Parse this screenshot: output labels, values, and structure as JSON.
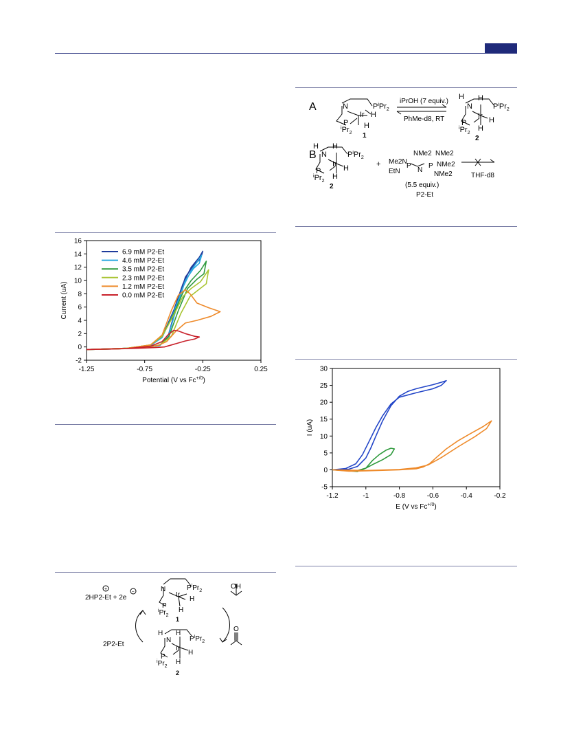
{
  "header": {
    "accent_color": "#1f2a7a"
  },
  "scheme_top": {
    "panel_a_label": "A",
    "panel_b_label": "B",
    "reagent_top": "iPrOH (7 equiv.)",
    "reagent_bottom": "PhMe-d8, RT",
    "compound_1": "1",
    "compound_2": "2",
    "compound_2b": "2",
    "plus": "+",
    "base_amount": "(5.5 equiv.)",
    "base_name": "P2-Et",
    "solvent_b": "THF-d8",
    "base_groups": [
      "Me2N",
      "NMe2",
      "NMe2",
      "EtN",
      "P",
      "N",
      "P",
      "NMe2",
      "NMe2"
    ]
  },
  "scheme_bottom": {
    "products_left": "2HP2-Et + 2e",
    "base_left": "2P2-Et",
    "alcohol": "OH",
    "ketone": "O",
    "compound_1": "1",
    "compound_2": "2"
  },
  "chart_data": [
    {
      "type": "line",
      "xlabel": "Potential  (V vs Fc+/0)",
      "ylabel": "Current (uA)",
      "xlim": [
        -1.25,
        0.25
      ],
      "ylim": [
        -2,
        16
      ],
      "xticks": [
        "-1.25",
        "-0.75",
        "-0.25",
        "0.25"
      ],
      "yticks": [
        "-2",
        "0",
        "2",
        "4",
        "6",
        "8",
        "10",
        "12",
        "14",
        "16"
      ],
      "legend": "top-left",
      "series": [
        {
          "name": "6.9 mM P2-Et",
          "color": "#1f3c9c",
          "x": [
            -1.25,
            -0.9,
            -0.7,
            -0.6,
            -0.5,
            -0.42,
            -0.35,
            -0.28,
            -0.25,
            -0.27,
            -0.32,
            -0.4,
            -0.48,
            -0.55,
            -0.62,
            -0.75,
            -1.0,
            -1.25
          ],
          "y": [
            -0.4,
            -0.2,
            0.2,
            1.5,
            5.5,
            9.5,
            12.0,
            13.5,
            14.4,
            13.2,
            12.5,
            10.5,
            6.0,
            1.5,
            0.2,
            -0.1,
            -0.3,
            -0.4
          ]
        },
        {
          "name": "4.6 mM P2-Et",
          "color": "#2aa8e0",
          "x": [
            -1.25,
            -0.9,
            -0.7,
            -0.6,
            -0.5,
            -0.42,
            -0.35,
            -0.29,
            -0.26,
            -0.28,
            -0.33,
            -0.4,
            -0.48,
            -0.55,
            -0.62,
            -0.75,
            -1.0,
            -1.25
          ],
          "y": [
            -0.4,
            -0.2,
            0.2,
            1.4,
            5.2,
            9.0,
            11.5,
            13.0,
            13.8,
            12.6,
            11.8,
            10.0,
            5.6,
            1.4,
            0.2,
            -0.1,
            -0.3,
            -0.4
          ]
        },
        {
          "name": "3.5 mM P2-Et",
          "color": "#2e9a3c",
          "x": [
            -1.25,
            -0.9,
            -0.7,
            -0.6,
            -0.5,
            -0.42,
            -0.35,
            -0.27,
            -0.22,
            -0.24,
            -0.3,
            -0.38,
            -0.46,
            -0.54,
            -0.62,
            -0.75,
            -1.0,
            -1.25
          ],
          "y": [
            -0.4,
            -0.2,
            0.3,
            1.6,
            5.0,
            8.2,
            10.0,
            11.5,
            12.9,
            11.0,
            10.2,
            8.8,
            5.5,
            1.6,
            0.3,
            -0.1,
            -0.3,
            -0.4
          ]
        },
        {
          "name": "2.3 mM P2-Et",
          "color": "#a8c431",
          "x": [
            -1.25,
            -0.9,
            -0.7,
            -0.6,
            -0.5,
            -0.42,
            -0.35,
            -0.27,
            -0.2,
            -0.22,
            -0.28,
            -0.36,
            -0.44,
            -0.52,
            -0.62,
            -0.75,
            -1.0,
            -1.25
          ],
          "y": [
            -0.4,
            -0.2,
            0.3,
            1.6,
            4.8,
            7.6,
            8.8,
            9.8,
            11.6,
            9.5,
            8.7,
            7.6,
            5.0,
            1.6,
            0.3,
            -0.1,
            -0.3,
            -0.4
          ]
        },
        {
          "name": "1.2 mM P2-Et",
          "color": "#ee8a2a",
          "x": [
            -1.25,
            -0.9,
            -0.7,
            -0.6,
            -0.52,
            -0.46,
            -0.4,
            -0.36,
            -0.3,
            -0.2,
            -0.1,
            -0.18,
            -0.3,
            -0.4,
            -0.48,
            -0.56,
            -0.64,
            -0.75,
            -1.0,
            -1.25
          ],
          "y": [
            -0.4,
            -0.2,
            0.3,
            1.8,
            5.5,
            7.8,
            8.6,
            8.0,
            6.6,
            5.9,
            5.3,
            4.6,
            4.0,
            3.6,
            2.4,
            0.8,
            0.2,
            -0.1,
            -0.3,
            -0.4
          ]
        },
        {
          "name": "0.0 mM P2-Et",
          "color": "#c8202a",
          "x": [
            -1.25,
            -0.9,
            -0.7,
            -0.6,
            -0.55,
            -0.5,
            -0.46,
            -0.4,
            -0.32,
            -0.28,
            -0.32,
            -0.4,
            -0.46,
            -0.52,
            -0.58,
            -0.66,
            -0.8,
            -1.0,
            -1.25
          ],
          "y": [
            -0.4,
            -0.25,
            0.1,
            0.8,
            1.8,
            2.5,
            2.4,
            2.0,
            1.6,
            1.5,
            1.2,
            0.9,
            0.6,
            0.3,
            0.0,
            -0.1,
            -0.2,
            -0.3,
            -0.4
          ]
        }
      ]
    },
    {
      "type": "line",
      "xlabel": "E (V vs Fc+/0)",
      "ylabel": "I (uA)",
      "xlim": [
        -1.2,
        -0.2
      ],
      "ylim": [
        -5,
        30
      ],
      "xticks": [
        "-1.2",
        "-1",
        "-0.8",
        "-0.6",
        "-0.4",
        "-0.2"
      ],
      "yticks": [
        "-5",
        "0",
        "5",
        "10",
        "15",
        "20",
        "25",
        "30"
      ],
      "series": [
        {
          "color": "#2346c8",
          "x": [
            -1.2,
            -1.1,
            -1.05,
            -1.0,
            -0.97,
            -0.94,
            -0.9,
            -0.85,
            -0.8,
            -0.75,
            -0.7,
            -0.65,
            -0.6,
            -0.55,
            -0.52,
            -0.55,
            -0.6,
            -0.7,
            -0.8,
            -0.85,
            -0.9,
            -0.94,
            -0.98,
            -1.02,
            -1.06,
            -1.12,
            -1.2
          ],
          "y": [
            0.0,
            0.2,
            1.0,
            3.5,
            6.5,
            10.0,
            14.5,
            19.0,
            21.8,
            23.2,
            24.0,
            24.6,
            25.2,
            25.9,
            26.4,
            25.0,
            24.0,
            22.8,
            21.5,
            19.5,
            16.0,
            12.5,
            8.5,
            4.5,
            1.8,
            0.4,
            0.0
          ]
        },
        {
          "color": "#2e9a3c",
          "x": [
            -1.2,
            -1.1,
            -1.05,
            -1.0,
            -0.96,
            -0.92,
            -0.88,
            -0.85,
            -0.83,
            -0.85,
            -0.9,
            -0.95,
            -1.0,
            -1.05,
            -1.1,
            -1.2
          ],
          "y": [
            0.0,
            -0.3,
            -0.5,
            0.5,
            2.8,
            4.5,
            5.8,
            6.4,
            6.2,
            4.5,
            3.0,
            1.8,
            0.5,
            -0.2,
            -0.3,
            0.0
          ]
        },
        {
          "color": "#ee8a2a",
          "x": [
            -1.2,
            -1.1,
            -1.0,
            -0.8,
            -0.7,
            -0.66,
            -0.62,
            -0.58,
            -0.52,
            -0.45,
            -0.38,
            -0.3,
            -0.25,
            -0.28,
            -0.35,
            -0.45,
            -0.55,
            -0.63,
            -0.7,
            -0.8,
            -1.0,
            -1.2
          ],
          "y": [
            0.0,
            -0.4,
            -0.3,
            0.0,
            0.3,
            0.8,
            1.8,
            3.6,
            6.2,
            8.6,
            10.6,
            12.8,
            14.5,
            12.2,
            9.8,
            6.8,
            3.6,
            1.4,
            0.6,
            0.1,
            -0.2,
            0.0
          ]
        }
      ]
    }
  ]
}
